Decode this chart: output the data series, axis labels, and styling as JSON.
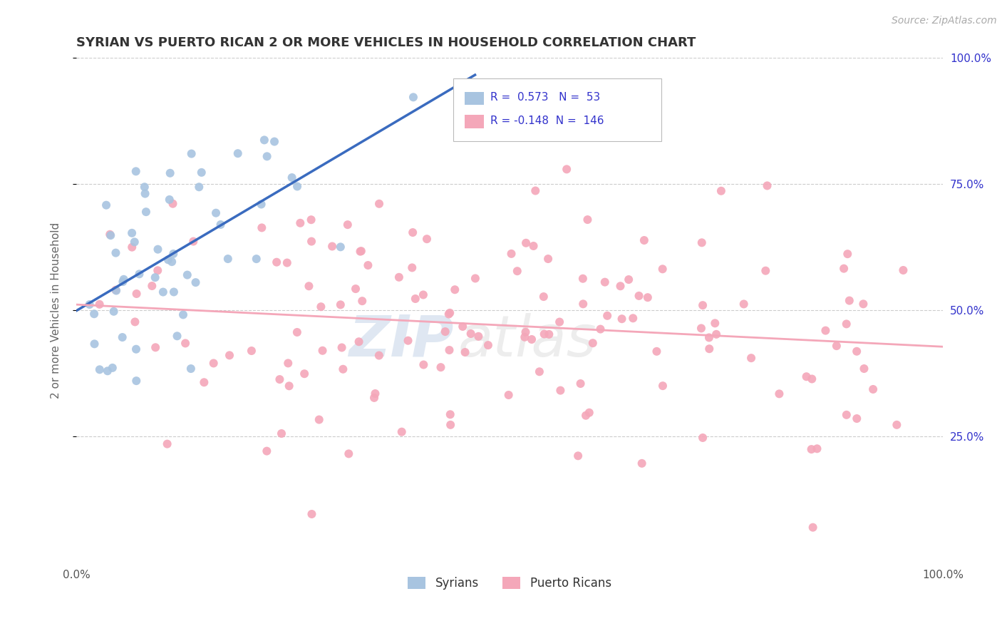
{
  "title": "SYRIAN VS PUERTO RICAN 2 OR MORE VEHICLES IN HOUSEHOLD CORRELATION CHART",
  "source": "Source: ZipAtlas.com",
  "ylabel": "2 or more Vehicles in Household",
  "xlim": [
    0.0,
    1.0
  ],
  "ylim": [
    0.0,
    1.0
  ],
  "syrian_R": 0.573,
  "syrian_N": 53,
  "puerto_rican_R": -0.148,
  "puerto_rican_N": 146,
  "syrian_color": "#a8c4e0",
  "puerto_rican_color": "#f4a7b9",
  "syrian_line_color": "#3a6bbf",
  "puerto_rican_line_color": "#f4a7b9",
  "legend_labels": [
    "Syrians",
    "Puerto Ricans"
  ],
  "watermark_zip": "ZIP",
  "watermark_atlas": "atlas",
  "background_color": "#ffffff",
  "grid_color": "#cccccc",
  "title_color": "#333333",
  "source_color": "#aaaaaa",
  "legend_text_color": "#3333cc"
}
